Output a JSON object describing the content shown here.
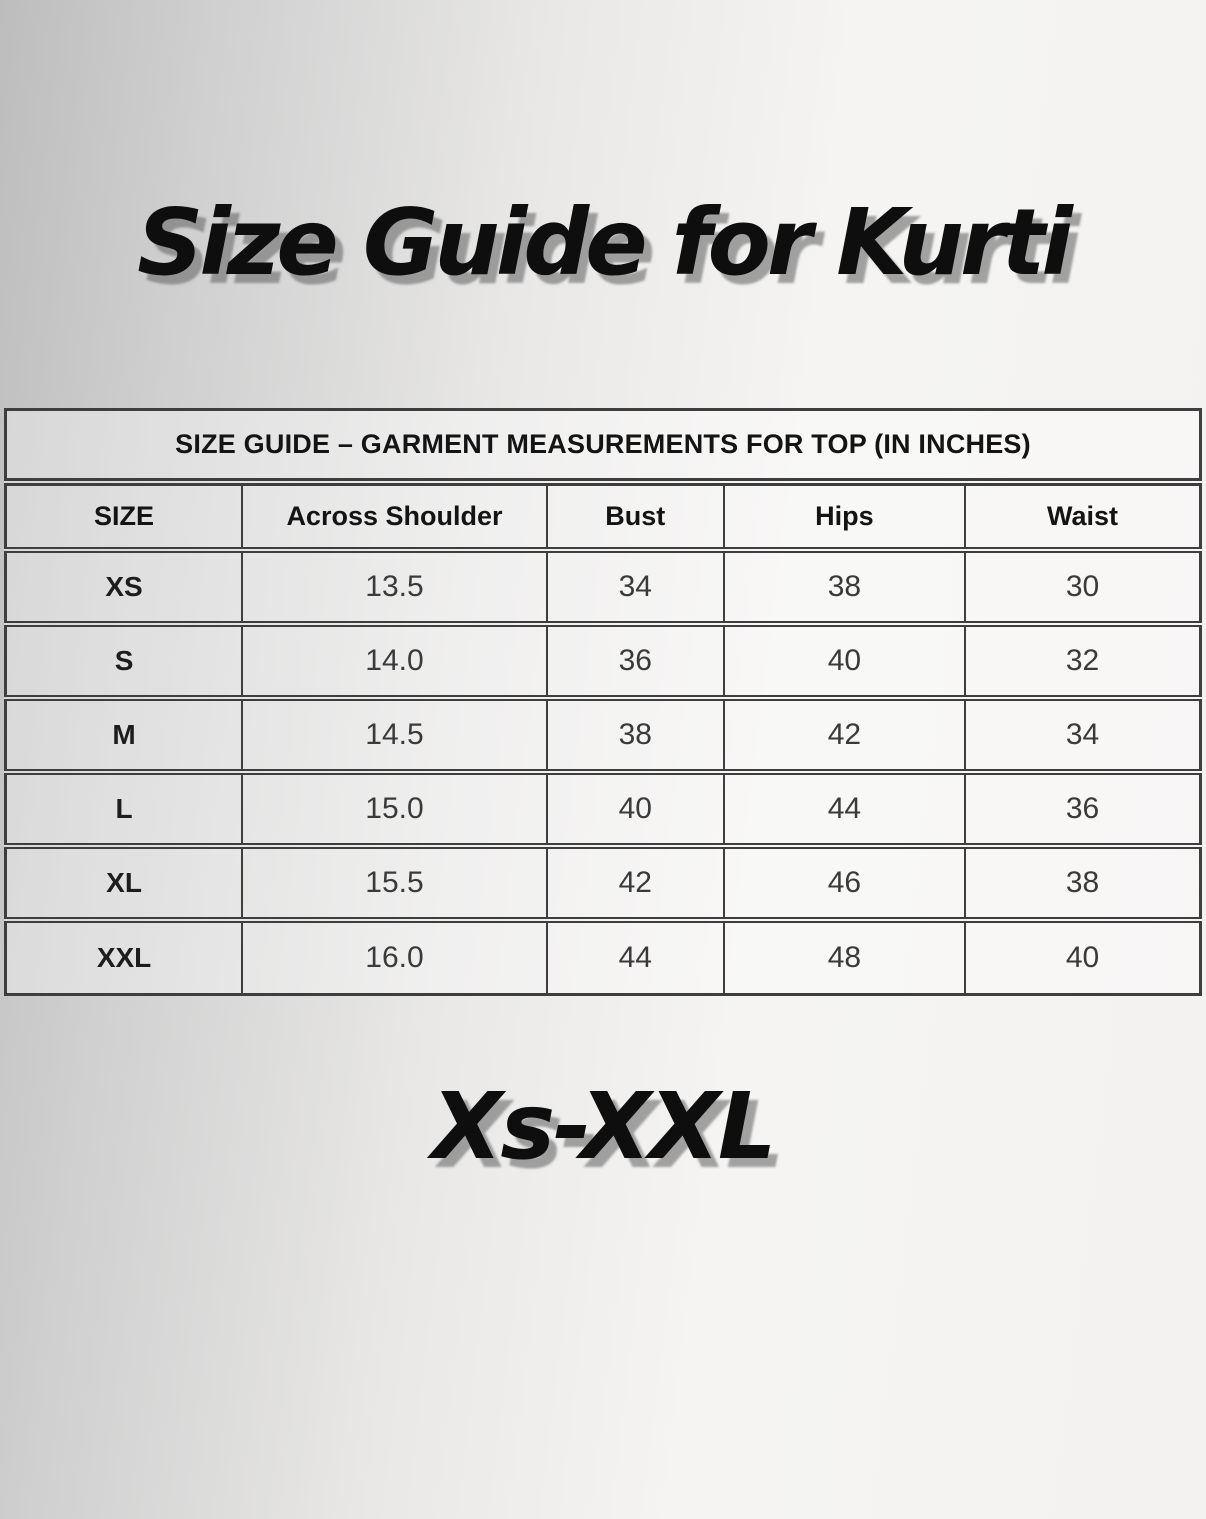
{
  "page": {
    "title": "Size Guide for Kurti",
    "size_range": "Xs-XXL"
  },
  "table": {
    "caption": "SIZE GUIDE – GARMENT MEASUREMENTS FOR TOP (IN INCHES)",
    "columns": [
      "SIZE",
      "Across Shoulder",
      "Bust",
      "Hips",
      "Waist"
    ],
    "rows": [
      {
        "size": "XS",
        "across_shoulder": "13.5",
        "bust": "34",
        "hips": "38",
        "waist": "30"
      },
      {
        "size": "S",
        "across_shoulder": "14.0",
        "bust": "36",
        "hips": "40",
        "waist": "32"
      },
      {
        "size": "M",
        "across_shoulder": "14.5",
        "bust": "38",
        "hips": "42",
        "waist": "34"
      },
      {
        "size": "L",
        "across_shoulder": "15.0",
        "bust": "40",
        "hips": "44",
        "waist": "36"
      },
      {
        "size": "XL",
        "across_shoulder": "15.5",
        "bust": "42",
        "hips": "46",
        "waist": "38"
      },
      {
        "size": "XXL",
        "across_shoulder": "16.0",
        "bust": "44",
        "hips": "48",
        "waist": "40"
      }
    ]
  },
  "colors": {
    "title_text": "#0e0e0e",
    "title_shadow": "#6e6e6e",
    "table_border": "#3e3e3e",
    "data_text": "#3a3a3a",
    "background_left": "#bdbdbd",
    "background_right": "#f3f2f0"
  },
  "chart_data": {
    "type": "table",
    "title": "SIZE GUIDE – GARMENT MEASUREMENTS FOR TOP (IN INCHES)",
    "columns": [
      "SIZE",
      "Across Shoulder",
      "Bust",
      "Hips",
      "Waist"
    ],
    "rows": [
      [
        "XS",
        "13.5",
        "34",
        "38",
        "30"
      ],
      [
        "S",
        "14.0",
        "36",
        "40",
        "32"
      ],
      [
        "M",
        "14.5",
        "38",
        "42",
        "34"
      ],
      [
        "L",
        "15.0",
        "40",
        "44",
        "36"
      ],
      [
        "XL",
        "15.5",
        "42",
        "46",
        "38"
      ],
      [
        "XXL",
        "16.0",
        "44",
        "48",
        "40"
      ]
    ],
    "units": "inches"
  }
}
